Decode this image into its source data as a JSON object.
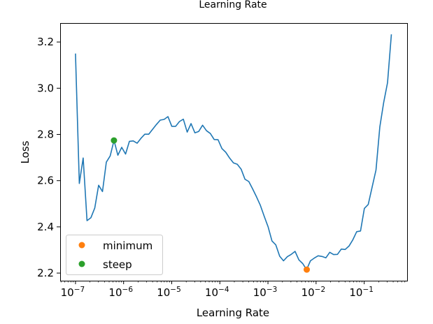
{
  "chart_data": {
    "type": "line",
    "title": "Learning Rate",
    "xlabel": "Learning Rate",
    "ylabel": "Loss",
    "xscale": "log",
    "xlim": [
      4.8e-08,
      0.78
    ],
    "ylim": [
      2.167,
      3.282
    ],
    "grid": false,
    "x_ticks": [
      {
        "base": "10",
        "exp": "−7",
        "value": 1e-07
      },
      {
        "base": "10",
        "exp": "−6",
        "value": 1e-06
      },
      {
        "base": "10",
        "exp": "−5",
        "value": 1e-05
      },
      {
        "base": "10",
        "exp": "−4",
        "value": 0.0001
      },
      {
        "base": "10",
        "exp": "−3",
        "value": 0.001
      },
      {
        "base": "10",
        "exp": "−2",
        "value": 0.01
      },
      {
        "base": "10",
        "exp": "−1",
        "value": 0.1
      }
    ],
    "y_ticks": [
      "2.2",
      "2.4",
      "2.6",
      "2.8",
      "3.0",
      "3.2"
    ],
    "series": [
      {
        "name": "loss",
        "color": "#1f77b4",
        "lr_start": 1e-07,
        "lr_end": 0.367,
        "spacing": "geometric",
        "values": [
          3.15,
          2.588,
          2.698,
          2.427,
          2.44,
          2.482,
          2.58,
          2.553,
          2.68,
          2.707,
          2.774,
          2.71,
          2.744,
          2.715,
          2.77,
          2.772,
          2.762,
          2.783,
          2.801,
          2.801,
          2.822,
          2.843,
          2.862,
          2.865,
          2.877,
          2.835,
          2.835,
          2.856,
          2.866,
          2.81,
          2.847,
          2.807,
          2.813,
          2.84,
          2.816,
          2.804,
          2.778,
          2.777,
          2.739,
          2.723,
          2.698,
          2.677,
          2.671,
          2.65,
          2.606,
          2.596,
          2.564,
          2.53,
          2.493,
          2.445,
          2.4,
          2.339,
          2.322,
          2.273,
          2.253,
          2.271,
          2.281,
          2.294,
          2.257,
          2.241,
          2.215,
          2.253,
          2.265,
          2.275,
          2.272,
          2.266,
          2.29,
          2.28,
          2.281,
          2.304,
          2.302,
          2.317,
          2.344,
          2.379,
          2.382,
          2.48,
          2.497,
          2.571,
          2.646,
          2.833,
          2.938,
          3.024,
          3.233
        ]
      }
    ],
    "markers": [
      {
        "name": "minimum",
        "color": "#ff7f0e",
        "x": 0.0064,
        "y": 2.215
      },
      {
        "name": "steep",
        "color": "#2ca02c",
        "x": 6.3e-07,
        "y": 2.774
      }
    ],
    "legend": {
      "placement": "lower-left",
      "entries": [
        "minimum",
        "steep"
      ]
    }
  }
}
